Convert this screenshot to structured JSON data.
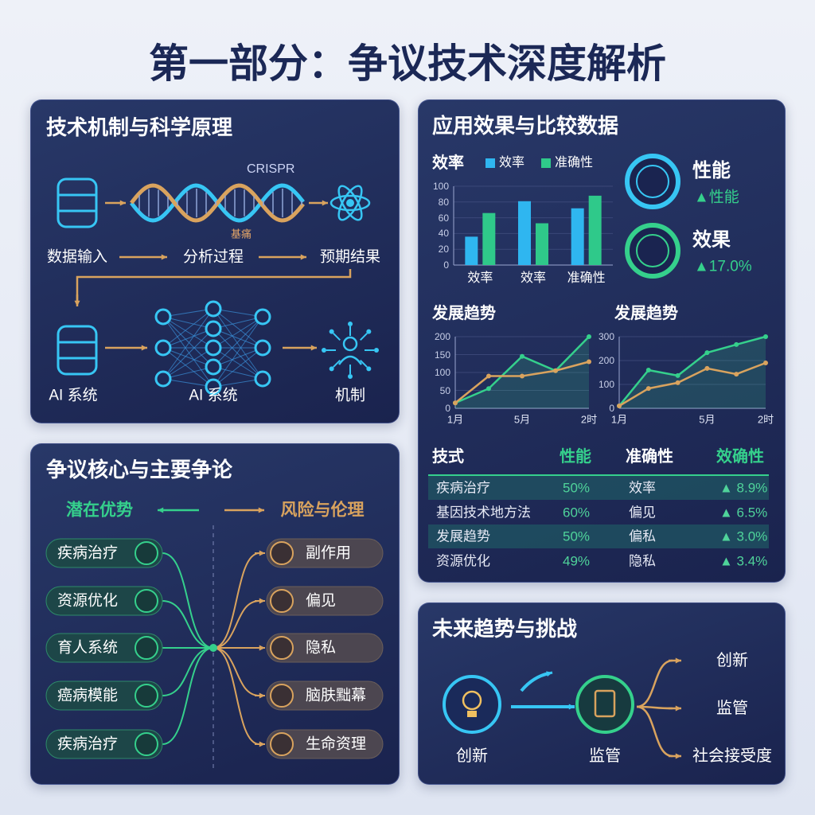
{
  "title": "第一部分：争议技术深度解析",
  "mechanism": {
    "title": "技术机制与科学原理",
    "crispr": "CRISPR",
    "base": "基痛",
    "flow1": [
      "数据输入",
      "分析过程",
      "预期结果"
    ],
    "flow2": [
      "AI 系统",
      "AI 系统",
      "机制"
    ]
  },
  "controversy": {
    "title": "争议核心与主要争论",
    "left_heading": "潜在优势",
    "right_heading": "风险与伦理",
    "left": [
      "疾病治疗",
      "资源优化",
      "育人系统",
      "癌病模能",
      "疾病治疗"
    ],
    "right": [
      "副作用",
      "偏见",
      "隐私",
      "脑肤黜幕",
      "生命资理"
    ]
  },
  "effects": {
    "title": "应用效果与比较数据",
    "kpis": [
      {
        "label": "性能",
        "note": "▲性能"
      },
      {
        "label": "效果",
        "note": "▲17.0%"
      }
    ],
    "table": {
      "header": [
        "技式",
        "性能",
        "准确性",
        "效确性"
      ],
      "rows": [
        [
          "疾病治疗",
          "50%",
          "效率",
          "▲ 8.9%"
        ],
        [
          "基因技术地方法",
          "60%",
          "偏见",
          "▲ 6.5%"
        ],
        [
          "发展趋势",
          "50%",
          "偏私",
          "▲ 3.0%"
        ],
        [
          "资源优化",
          "49%",
          "隐私",
          "▲ 3.4%"
        ]
      ]
    }
  },
  "future": {
    "title": "未来趋势与挑战",
    "steps": [
      "创新",
      "监管"
    ],
    "outcomes": [
      "创新",
      "监管",
      "社会接受度"
    ]
  },
  "chart_data": [
    {
      "type": "bar",
      "title": "效率",
      "categories": [
        "效率",
        "效率",
        "准确性"
      ],
      "series": [
        {
          "name": "效率",
          "color": "#2fb6f0",
          "values": [
            36,
            81,
            72
          ]
        },
        {
          "name": "准确性",
          "color": "#2fc98a",
          "values": [
            66,
            53,
            88
          ]
        }
      ],
      "ylim": [
        0,
        100
      ],
      "yticks": [
        0,
        20,
        40,
        60,
        80,
        100
      ]
    },
    {
      "type": "line",
      "title": "发展趋势",
      "categories": [
        "1月",
        null,
        "5月",
        null,
        "2时"
      ],
      "series": [
        {
          "color": "#35d08c",
          "values": [
            15,
            55,
            145,
            105,
            200
          ]
        },
        {
          "color": "#d9a35e",
          "values": [
            15,
            90,
            90,
            105,
            130
          ]
        }
      ],
      "ylim": [
        0,
        200
      ],
      "yticks": [
        0,
        50,
        100,
        150,
        200
      ]
    },
    {
      "type": "line",
      "title": "发展趋势",
      "categories": [
        "1月",
        null,
        null,
        "5月",
        null,
        "2时"
      ],
      "series": [
        {
          "color": "#35d08c",
          "values": [
            10,
            160,
            137,
            233,
            267,
            300
          ]
        },
        {
          "color": "#d9a35e",
          "values": [
            10,
            83,
            107,
            167,
            143,
            190
          ]
        }
      ],
      "ylim": [
        0,
        300
      ],
      "yticks": [
        0,
        100,
        200,
        300
      ]
    }
  ]
}
